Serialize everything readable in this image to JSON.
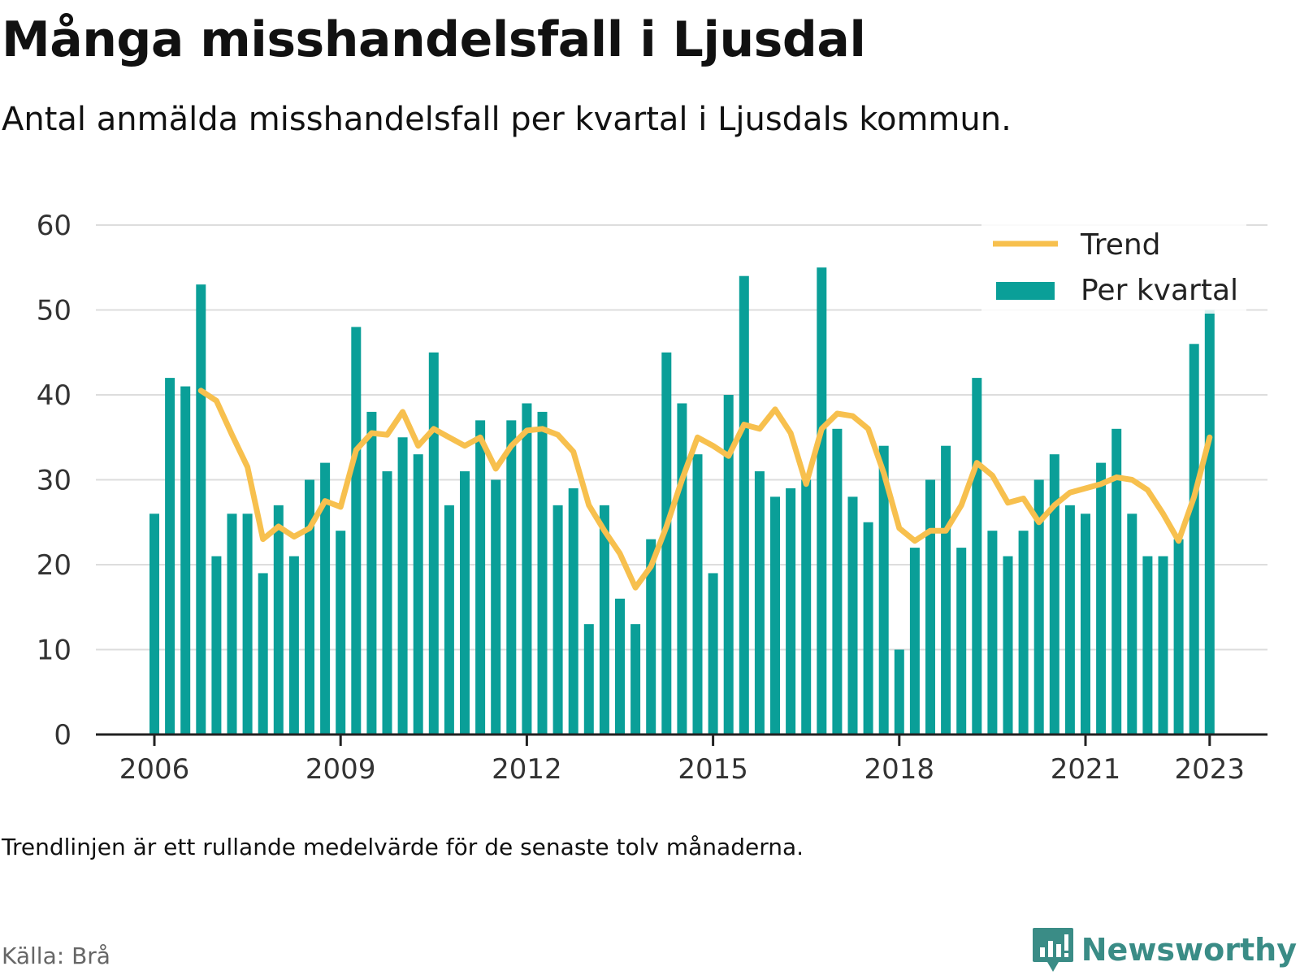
{
  "title": "Många misshandelsfall i Ljusdal",
  "subtitle": "Antal anmälda misshandelsfall per kvartal i Ljusdals kommun.",
  "note": "Trendlinjen är ett rullande medelvärde för de senaste tolv månaderna.",
  "source": "Källa: Brå",
  "brand": {
    "name": "Newsworthy",
    "icon": "newsworthy-logo-icon"
  },
  "colors": {
    "bars": "#0a9f98",
    "trend": "#f7c04e",
    "grid": "#dddddd",
    "axis": "#222222"
  },
  "chart_data": {
    "type": "bar",
    "x_ticks": [
      "2006",
      "2009",
      "2012",
      "2015",
      "2018",
      "2021",
      "2023"
    ],
    "y_ticks": [
      "0",
      "10",
      "20",
      "30",
      "40",
      "50",
      "60"
    ],
    "ylim": [
      0,
      60
    ],
    "grid": true,
    "legend_position": "top-right",
    "start_quarter": "2006 Q1",
    "series": [
      {
        "name": "Per kvartal",
        "type": "bar",
        "values": [
          26,
          42,
          41,
          53,
          21,
          26,
          26,
          19,
          27,
          21,
          30,
          32,
          24,
          48,
          38,
          31,
          35,
          33,
          45,
          27,
          31,
          37,
          30,
          37,
          39,
          38,
          27,
          29,
          13,
          27,
          16,
          13,
          23,
          45,
          39,
          33,
          19,
          40,
          54,
          31,
          28,
          29,
          30,
          55,
          36,
          28,
          25,
          34,
          10,
          22,
          30,
          34,
          22,
          42,
          24,
          21,
          24,
          30,
          33,
          27,
          26,
          32,
          36,
          26,
          21,
          21,
          23,
          46,
          50
        ]
      },
      {
        "name": "Trend",
        "type": "line",
        "values": [
          null,
          null,
          null,
          40.5,
          39.3,
          35.3,
          31.5,
          23.0,
          24.5,
          23.3,
          24.3,
          27.5,
          26.8,
          33.5,
          35.5,
          35.3,
          38.0,
          34.0,
          36.0,
          35.0,
          34.0,
          35.0,
          31.3,
          34.0,
          35.8,
          36.0,
          35.3,
          33.3,
          27.0,
          24.0,
          21.3,
          17.3,
          19.8,
          24.5,
          30.0,
          35.0,
          34.0,
          32.8,
          36.5,
          36.0,
          38.3,
          35.5,
          29.5,
          36.0,
          37.8,
          37.5,
          36.0,
          30.8,
          24.3,
          22.8,
          24.0,
          24.0,
          27.0,
          32.0,
          30.5,
          27.3,
          27.8,
          25.0,
          27.0,
          28.5,
          29.0,
          29.5,
          30.3,
          30.0,
          28.8,
          26.0,
          22.8,
          28.0,
          35.0
        ]
      }
    ]
  }
}
